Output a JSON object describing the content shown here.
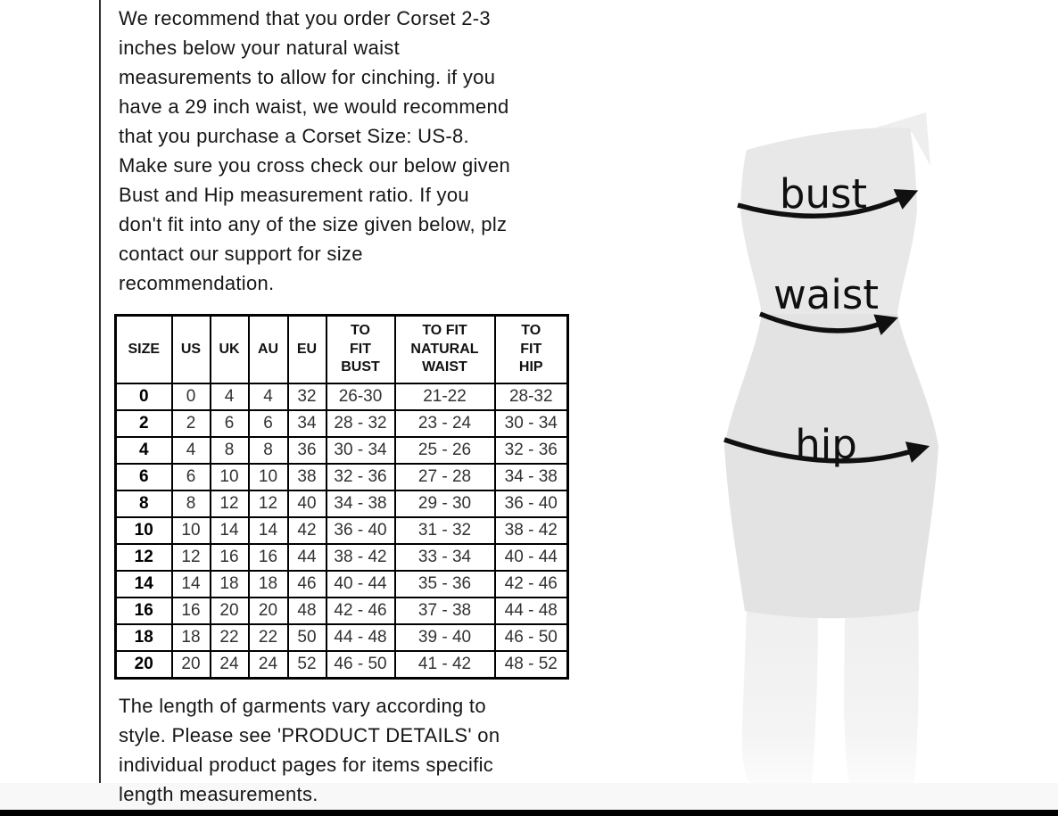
{
  "intro": {
    "text": "We recommend that you order Corset 2-3\ninches below your natural waist\nmeasurements to allow for cinching. if you\nhave a 29 inch waist, we would recommend\nthat you purchase a Corset Size: US-8.\nMake sure you cross check our below given\nBust and Hip measurement ratio. If you\ndon't fit into any of the size given below, plz\ncontact our support for size\nrecommendation."
  },
  "outro": {
    "text": "The length of garments vary according to\nstyle. Please see 'PRODUCT DETAILS' on\nindividual product pages for items specific\nlength measurements."
  },
  "size_table": {
    "headers": [
      "SIZE",
      "US",
      "UK",
      "AU",
      "EU",
      "TO\nFIT\nBUST",
      "TO FIT\nNATURAL\nWAIST",
      "TO\nFIT\nHIP"
    ],
    "rows": [
      [
        "0",
        "0",
        "4",
        "4",
        "32",
        "26-30",
        "21-22",
        "28-32"
      ],
      [
        "2",
        "2",
        "6",
        "6",
        "34",
        "28 - 32",
        "23 - 24",
        "30 - 34"
      ],
      [
        "4",
        "4",
        "8",
        "8",
        "36",
        "30 - 34",
        "25 - 26",
        "32 - 36"
      ],
      [
        "6",
        "6",
        "10",
        "10",
        "38",
        "32 - 36",
        "27 - 28",
        "34 - 38"
      ],
      [
        "8",
        "8",
        "12",
        "12",
        "40",
        "34 - 38",
        "29 - 30",
        "36 - 40"
      ],
      [
        "10",
        "10",
        "14",
        "14",
        "42",
        "36 - 40",
        "31 - 32",
        "38 - 42"
      ],
      [
        "12",
        "12",
        "16",
        "16",
        "44",
        "38 - 42",
        "33 - 34",
        "40 - 44"
      ],
      [
        "14",
        "14",
        "18",
        "18",
        "46",
        "40 - 44",
        "35 - 36",
        "42 - 46"
      ],
      [
        "16",
        "16",
        "20",
        "20",
        "48",
        "42 - 46",
        "37 - 38",
        "44 - 48"
      ],
      [
        "18",
        "18",
        "22",
        "22",
        "50",
        "44 - 48",
        "39 - 40",
        "46 - 50"
      ],
      [
        "20",
        "20",
        "24",
        "24",
        "52",
        "46 - 50",
        "41 - 42",
        "48 - 52"
      ]
    ]
  },
  "figure": {
    "bust_label": "bust",
    "waist_label": "waist",
    "hip_label": "hip"
  },
  "colors": {
    "text": "#161616",
    "table_border": "#000000",
    "silhouette": "#e8e8e8",
    "silhouette_shade": "#e0e0e0",
    "legs": "#f2f2f2",
    "arrow": "#101010"
  }
}
